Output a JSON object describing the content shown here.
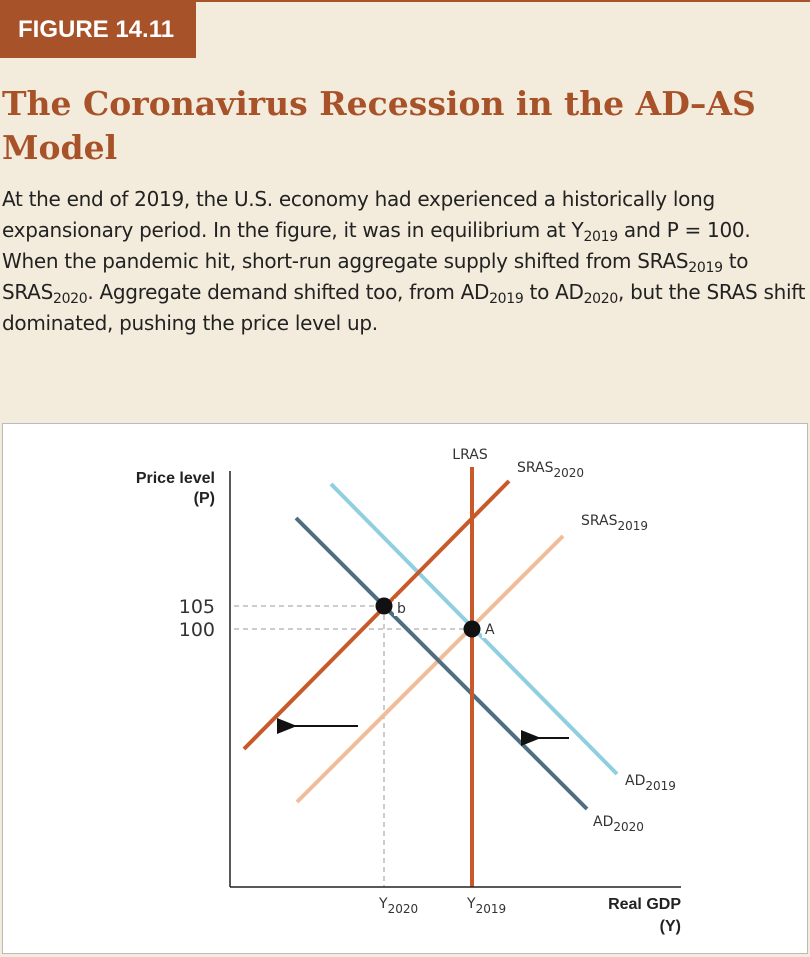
{
  "figure_label": "FIGURE 14.11",
  "title": "The Coronavirus Recession in the AD–AS Model",
  "caption": [
    {
      "t": "At the end of 2019, the U.S. economy had experienced a historically long expansionary period. In the figure, it was in equilibrium at Y"
    },
    {
      "t": "2019",
      "sub": true
    },
    {
      "t": " and P = 100. When the pandemic hit, short-run aggregate supply shifted from SRAS"
    },
    {
      "t": "2019",
      "sub": true
    },
    {
      "t": " to SRAS"
    },
    {
      "t": "2020",
      "sub": true
    },
    {
      "t": ". Aggregate demand shifted too, from AD"
    },
    {
      "t": "2019",
      "sub": true
    },
    {
      "t": " to AD"
    },
    {
      "t": "2020",
      "sub": true
    },
    {
      "t": ", but the SRAS shift dominated, pushing the price level up."
    }
  ],
  "diagram": {
    "y_axis_label_line1": "Price level",
    "y_axis_label_line2": "(P)",
    "x_axis_label_line1": "Real GDP",
    "x_axis_label_line2": "(Y)",
    "price_ticks": [
      "105",
      "100"
    ],
    "output_ticks": [
      {
        "base": "Y",
        "sub": "2020"
      },
      {
        "base": "Y",
        "sub": "2019"
      }
    ],
    "curves": {
      "lras": {
        "label": "LRAS",
        "color": "#c85a2a"
      },
      "sras_2020": {
        "base": "SRAS",
        "sub": "2020",
        "color": "#c85a2a"
      },
      "sras_2019": {
        "base": "SRAS",
        "sub": "2019",
        "color": "#f0bc9a"
      },
      "ad_2019": {
        "base": "AD",
        "sub": "2019",
        "color": "#8fcfe0"
      },
      "ad_2020": {
        "base": "AD",
        "sub": "2020",
        "color": "#4e6e82"
      }
    },
    "points": [
      {
        "label": "b"
      },
      {
        "label": "A"
      }
    ]
  }
}
